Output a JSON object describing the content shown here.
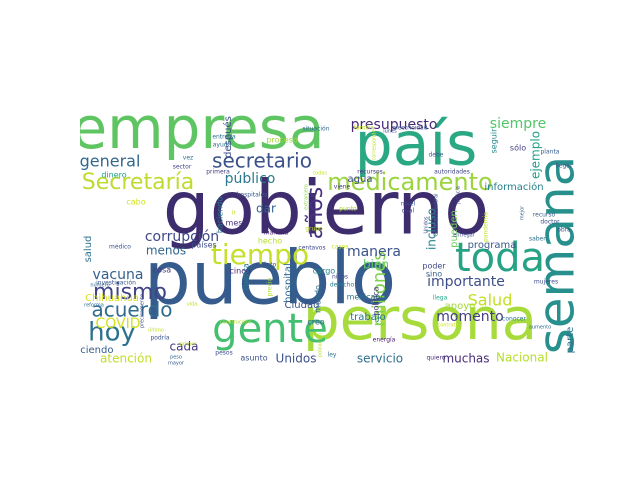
{
  "wordcloud": {
    "words": [
      {
        "text": "gobierno",
        "color": "#3e2d6e"
      },
      {
        "text": "pueblo",
        "color": "#365c8d"
      },
      {
        "text": "país",
        "color": "#2aa883"
      },
      {
        "text": "empresa",
        "color": "#5fc563"
      },
      {
        "text": "persona",
        "color": "#a6db3b"
      },
      {
        "text": "semana",
        "color": "#27908c"
      },
      {
        "text": "gente",
        "color": "#44bf70"
      },
      {
        "text": "toda",
        "color": "#26a384"
      },
      {
        "text": "tiempo",
        "color": "#c6df2b"
      },
      {
        "text": "medicamento",
        "color": "#9bd43e"
      },
      {
        "text": "Secretaría",
        "color": "#bedb2f"
      },
      {
        "text": "secretario",
        "color": "#3b518b"
      },
      {
        "text": "hoy",
        "color": "#2c728e"
      },
      {
        "text": "mismo",
        "color": "#414487"
      },
      {
        "text": "acuerdo",
        "color": "#2f6c8e"
      },
      {
        "text": "años",
        "color": "#46317e"
      },
      {
        "text": "millones",
        "color": "#7fd34e"
      },
      {
        "text": "presupuesto",
        "color": "#482878"
      },
      {
        "text": "siempre",
        "color": "#54c568"
      },
      {
        "text": "general",
        "color": "#31688e"
      },
      {
        "text": "Salud",
        "color": "#c2df23"
      },
      {
        "text": "corrupción",
        "color": "#3e4989"
      },
      {
        "text": "público",
        "color": "#2a788e"
      },
      {
        "text": "vacuna",
        "color": "#35608d"
      },
      {
        "text": "manera",
        "color": "#3a538b"
      },
      {
        "text": "importante",
        "color": "#3d4e8a"
      },
      {
        "text": "momento",
        "color": "#433e85"
      },
      {
        "text": "COVID",
        "color": "#d2e21b"
      },
      {
        "text": "Nacional",
        "color": "#b5de2b"
      },
      {
        "text": "servicio",
        "color": "#2e6f8e"
      },
      {
        "text": "atención",
        "color": "#c0df25"
      },
      {
        "text": "muchas",
        "color": "#472c7a"
      },
      {
        "text": "Unidos",
        "color": "#3b528b"
      },
      {
        "text": "cada",
        "color": "#463480"
      },
      {
        "text": "Haciendo",
        "color": "#355f8d"
      },
      {
        "text": "parte",
        "color": "#2d718e"
      },
      {
        "text": "dar",
        "color": "#34618d"
      },
      {
        "text": "bien",
        "color": "#5ec962"
      },
      {
        "text": "incluso",
        "color": "#25848e"
      },
      {
        "text": "ejemplo",
        "color": "#1f9e89"
      },
      {
        "text": "menos",
        "color": "#31678e"
      },
      {
        "text": "información",
        "color": "#26828e"
      },
      {
        "text": "agua",
        "color": "#3f4788"
      },
      {
        "text": "trabajo",
        "color": "#2b748e"
      },
      {
        "text": "después",
        "color": "#3d4d8a"
      },
      {
        "text": "programa",
        "color": "#38598c"
      },
      {
        "text": "pueden",
        "color": "#6ccd5a"
      },
      {
        "text": "salud",
        "color": "#2c718e"
      },
      {
        "text": "Chihuahua",
        "color": "#d8e219"
      },
      {
        "text": "hospital",
        "color": "#306a8e"
      },
      {
        "text": "Ciudad",
        "color": "#3b528b"
      },
      {
        "text": "mexicano",
        "color": "#2c738e"
      },
      {
        "text": "política",
        "color": "#472f7d"
      },
      {
        "text": "apoyo",
        "color": "#a0da39"
      },
      {
        "text": "mundo",
        "color": "#2e6e8e"
      },
      {
        "text": "seguir",
        "color": "#23898e"
      },
      {
        "text": "cosa",
        "color": "#453781"
      },
      {
        "text": "cinco",
        "color": "#482475"
      },
      {
        "text": "cargo",
        "color": "#23888e"
      },
      {
        "text": "poder",
        "color": "#3f4889"
      },
      {
        "text": "sino",
        "color": "#355e8d"
      },
      {
        "text": "sólo",
        "color": "#433e85"
      },
      {
        "text": "mes",
        "color": "#46337f"
      },
      {
        "text": "países",
        "color": "#3e4c8a"
      },
      {
        "text": "haciendo",
        "color": "#2a788e"
      },
      {
        "text": "hecho",
        "color": "#b8de29"
      },
      {
        "text": "proceso",
        "color": "#9fda3a"
      },
      {
        "text": "asunto",
        "color": "#3b528b"
      },
      {
        "text": "creo",
        "color": "#31678e"
      },
      {
        "text": "pesos",
        "color": "#3e4989"
      },
      {
        "text": "cuenta",
        "color": "#2a778e"
      },
      {
        "text": "quiero",
        "color": "#472a7a"
      },
      {
        "text": "ley",
        "color": "#2d718e"
      },
      {
        "text": "llega",
        "color": "#22a785"
      },
      {
        "text": "mujeres",
        "color": "#3d4e8a"
      },
      {
        "text": "conocer",
        "color": "#2c738e"
      },
      {
        "text": "aumento",
        "color": "#2f6b8e"
      },
      {
        "text": "llegar",
        "color": "#3a548c"
      },
      {
        "text": "recurso",
        "color": "#38598c"
      },
      {
        "text": "doctor",
        "color": "#3b518b"
      },
      {
        "text": "obra",
        "color": "#3d4e8a"
      },
      {
        "text": "saben",
        "color": "#2c728e"
      },
      {
        "text": "planta",
        "color": "#365d8d"
      },
      {
        "text": "debe",
        "color": "#375a8c"
      },
      {
        "text": "electricidad",
        "color": "#3b528b"
      },
      {
        "text": "situación",
        "color": "#306a8e"
      },
      {
        "text": "familia",
        "color": "#bddf26"
      },
      {
        "text": "entrega",
        "color": "#2d718e"
      },
      {
        "text": "ayuda",
        "color": "#2e6d8e"
      },
      {
        "text": "sector",
        "color": "#3f4788"
      },
      {
        "text": "dinero",
        "color": "#1fa187"
      },
      {
        "text": "primera",
        "color": "#433d84"
      },
      {
        "text": "hospitales",
        "color": "#365c8d"
      },
      {
        "text": "mañana",
        "color": "#482071"
      },
      {
        "text": "centavos",
        "color": "#3f4889"
      },
      {
        "text": "derecho",
        "color": "#2a788e"
      },
      {
        "text": "niños",
        "color": "#3e4a89"
      },
      {
        "text": "médico",
        "color": "#3b528b"
      },
      {
        "text": "investigación",
        "color": "#38588c"
      },
      {
        "text": "número",
        "color": "#2f6b8e"
      },
      {
        "text": "último",
        "color": "#c2df23"
      },
      {
        "text": "cuánto",
        "color": "#3e4989"
      },
      {
        "text": "grupo",
        "color": "#bddf26"
      },
      {
        "text": "viene",
        "color": "#46327e"
      },
      {
        "text": "precio",
        "color": "#b2dd2d"
      },
      {
        "text": "punto",
        "color": "#a8db34"
      },
      {
        "text": "casos",
        "color": "#c5e021"
      },
      {
        "text": "energía",
        "color": "#481b6d"
      },
      {
        "text": "autoridades",
        "color": "#3f4788"
      },
      {
        "text": "recursos",
        "color": "#453781"
      },
      {
        "text": "mayor",
        "color": "#38598c"
      },
      {
        "text": "nivel",
        "color": "#3b528b"
      },
      {
        "text": "cual",
        "color": "#3e4989"
      },
      {
        "text": "cabo",
        "color": "#d2e21b"
      },
      {
        "text": "Comisión Federal",
        "color": "#35608d"
      },
      {
        "text": "vez",
        "color": "#2e6f8e"
      },
      {
        "text": "justicia",
        "color": "#3e4a89"
      },
      {
        "text": "pandemia",
        "color": "#bddf26"
      },
      {
        "text": "podría",
        "color": "#3a548c"
      },
      {
        "text": "precisamente",
        "color": "#3f4889"
      },
      {
        "text": "entregar",
        "color": "#3d4e8a"
      },
      {
        "text": "mejor",
        "color": "#35608d"
      },
      {
        "text": "peso",
        "color": "#31678e"
      },
      {
        "text": "ir",
        "color": "#c2df23"
      },
      {
        "text": "primer",
        "color": "#b5de2b"
      },
      {
        "text": "reforma",
        "color": "#2e6e8e"
      },
      {
        "text": "lunes",
        "color": "#3e4989"
      },
      {
        "text": "corresponde",
        "color": "#bddf26"
      },
      {
        "text": "todas",
        "color": "#cae11f"
      },
      {
        "text": "vida",
        "color": "#bddf26"
      },
      {
        "text": "extranjero",
        "color": "#8bd646"
      },
      {
        "text": "población",
        "color": "#b8de29"
      },
      {
        "text": "construcción",
        "color": "#b2dd2d"
      },
      {
        "text": "contrato",
        "color": "#cde11d"
      },
      {
        "text": "Unidos",
        "color": "#3e4989"
      }
    ]
  }
}
